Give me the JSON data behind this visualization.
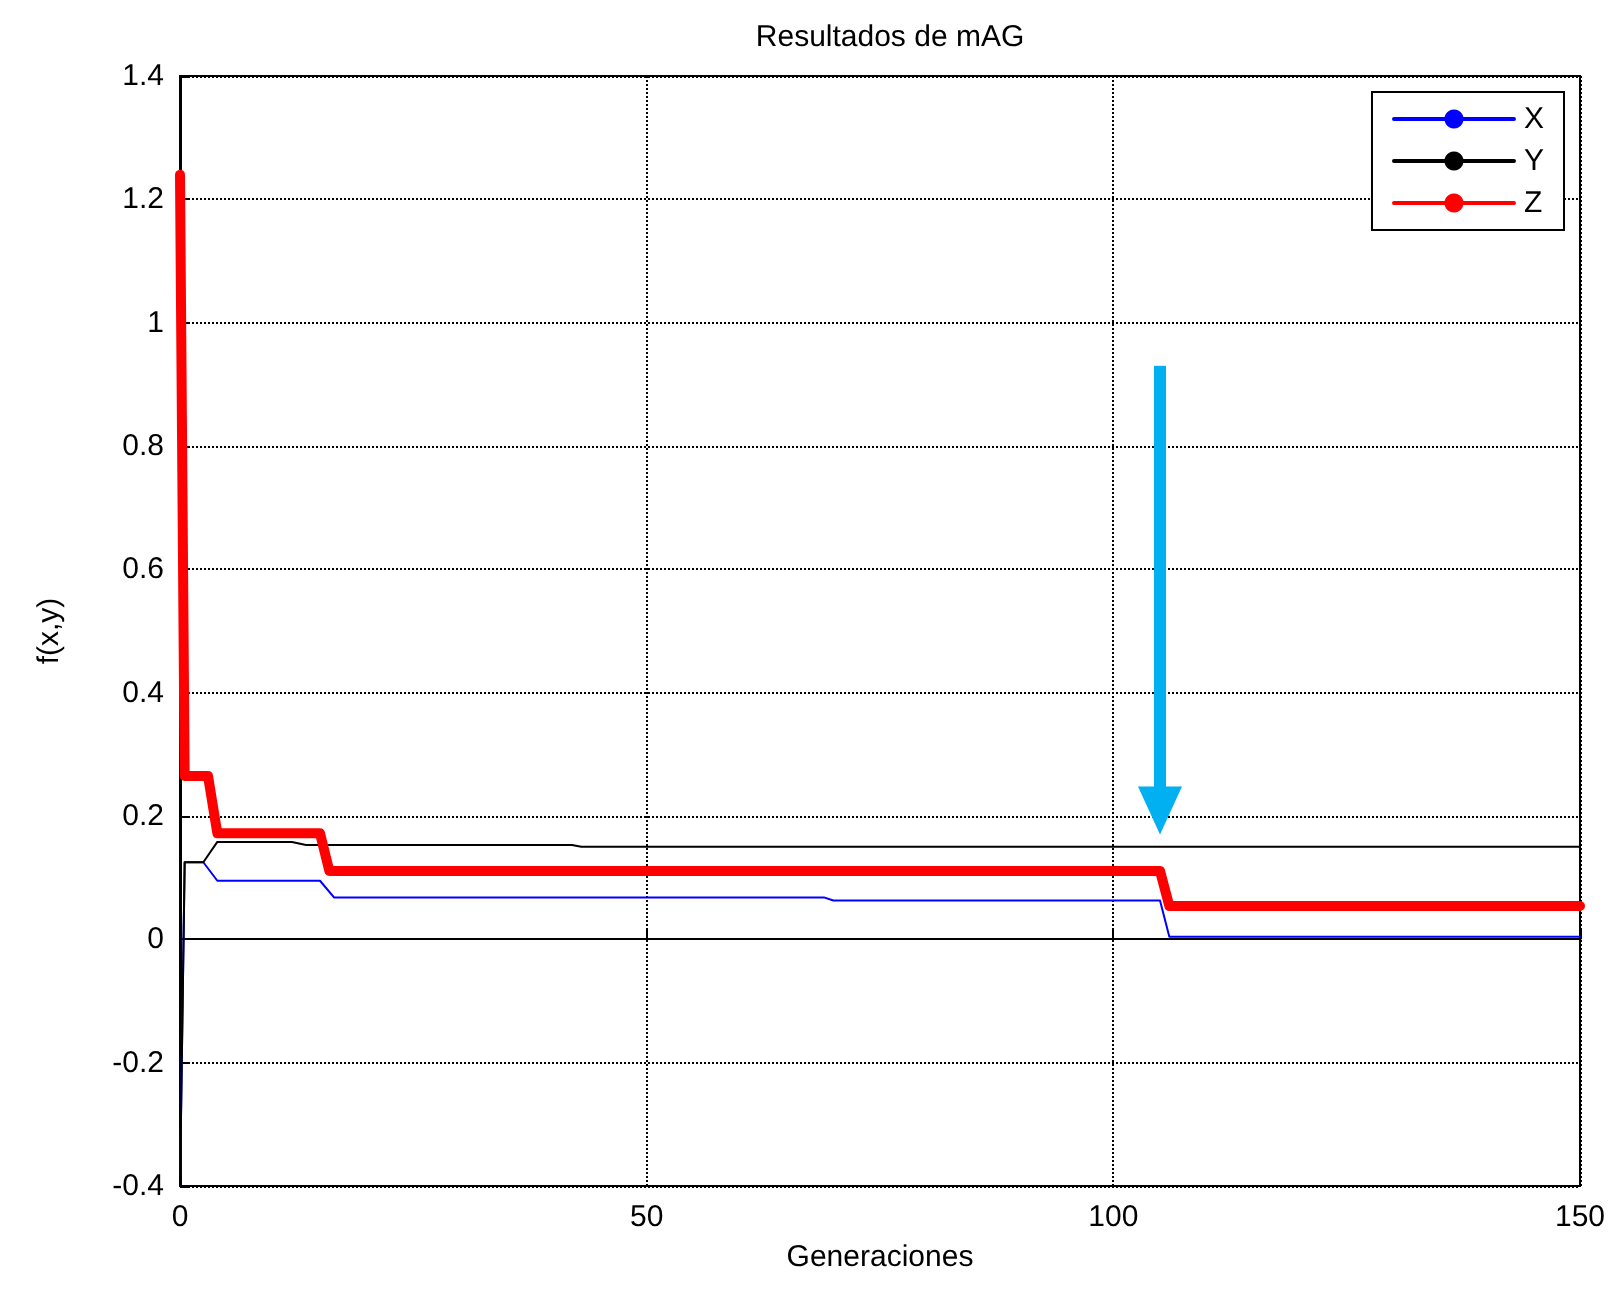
{
  "chart_data": {
    "type": "line",
    "title": "Resultados de mAG",
    "xlabel": "Generaciones",
    "ylabel": "f(x,y)",
    "xlim": [
      0,
      150
    ],
    "xticks": [
      0,
      50,
      100,
      150
    ],
    "ylim": [
      -0.4,
      1.4
    ],
    "yticks": [
      -0.4,
      -0.2,
      0,
      0.2,
      0.4,
      0.6,
      0.8,
      1,
      1.2,
      1.4
    ],
    "grid": true,
    "legend": "top right",
    "marker": "none",
    "line_style": "solid",
    "series": [
      {
        "name": "X",
        "color": "#0000ff",
        "x": [
          0,
          0.5,
          2.5,
          4,
          15,
          16.5,
          69,
          70,
          105,
          106,
          150
        ],
        "values": [
          -0.4,
          0.125,
          0.125,
          0.095,
          0.095,
          0.068,
          0.068,
          0.063,
          0.063,
          0.004,
          0.004
        ]
      },
      {
        "name": "Y",
        "color": "#000000",
        "x": [
          0,
          0.5,
          2.5,
          4,
          12,
          13.5,
          42,
          43,
          150
        ],
        "values": [
          -0.4,
          0.125,
          0.125,
          0.158,
          0.158,
          0.153,
          0.153,
          0.15,
          0.15
        ]
      },
      {
        "name": "Z",
        "color": "#ff0000",
        "x": [
          0,
          0.5,
          3,
          4,
          15,
          16,
          105,
          106,
          150
        ],
        "values": [
          1.24,
          0.265,
          0.265,
          0.172,
          0.172,
          0.111,
          0.111,
          0.054,
          0.054
        ]
      }
    ]
  }
}
